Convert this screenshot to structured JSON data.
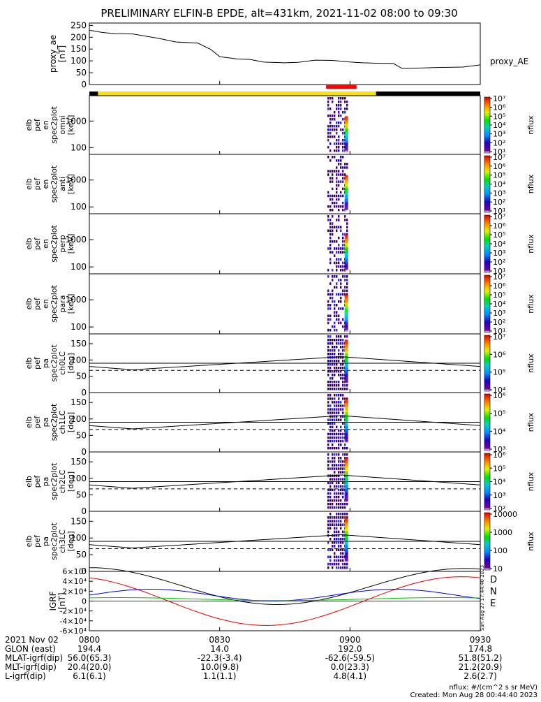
{
  "title": "PRELIMINARY ELFIN-B EPDE, alt=431km, 2021-11-02 08:00 to 09:30",
  "chart_data": [
    {
      "id": "proxy_ae",
      "type": "line",
      "ylabel": [
        "proxy_ae",
        "[nT]"
      ],
      "legend": "proxy_AE",
      "ylim": [
        0,
        260
      ],
      "yticks": [
        "0",
        "50",
        "100",
        "150",
        "200",
        "250"
      ],
      "series": [
        {
          "name": "proxy_AE",
          "x_min": [
            0,
            3,
            6,
            10,
            16,
            20,
            25,
            28,
            30,
            34,
            37,
            40,
            45,
            48,
            52,
            56,
            60,
            63,
            66,
            70,
            72,
            77,
            80,
            86,
            90
          ],
          "values": [
            230,
            220,
            215,
            214,
            195,
            180,
            175,
            148,
            118,
            108,
            106,
            95,
            92,
            94,
            103,
            102,
            95,
            92,
            90,
            89,
            68,
            70,
            72,
            74,
            83
          ]
        }
      ]
    },
    {
      "id": "en_omni",
      "type": "heatmap",
      "ylabel": [
        "elb",
        "pef",
        "en",
        "spec2plot",
        "omni",
        "[keV]"
      ],
      "yscale": "log",
      "yticks": [
        "100",
        "1000"
      ],
      "colorbar": {
        "ticks": [
          "10¹",
          "10²",
          "10³",
          "10⁴",
          "10⁵",
          "10⁶",
          "10⁷"
        ],
        "label": "nflux"
      }
    },
    {
      "id": "en_anti",
      "type": "heatmap",
      "ylabel": [
        "elb",
        "pef",
        "en",
        "spec2plot",
        "anti",
        "[keV]"
      ],
      "yscale": "log",
      "yticks": [
        "100",
        "1000"
      ],
      "colorbar": {
        "ticks": [
          "10¹",
          "10²",
          "10³",
          "10⁴",
          "10⁵",
          "10⁶",
          "10⁷"
        ],
        "label": "nflux"
      }
    },
    {
      "id": "en_perp",
      "type": "heatmap",
      "ylabel": [
        "elb",
        "pef",
        "en",
        "spec2plot",
        "perp",
        "[keV]"
      ],
      "yscale": "log",
      "yticks": [
        "100",
        "1000"
      ],
      "colorbar": {
        "ticks": [
          "10¹",
          "10²",
          "10³",
          "10⁴",
          "10⁵",
          "10⁶",
          "10⁷"
        ],
        "label": "nflux"
      }
    },
    {
      "id": "en_para",
      "type": "heatmap",
      "ylabel": [
        "elb",
        "pef",
        "en",
        "spec2plot",
        "para",
        "[keV]"
      ],
      "yscale": "log",
      "yticks": [
        "100",
        "1000"
      ],
      "colorbar": {
        "ticks": [
          "10¹",
          "10²",
          "10³",
          "10⁴",
          "10⁵",
          "10⁶",
          "10⁷"
        ],
        "label": "nflux"
      }
    },
    {
      "id": "ch0lc",
      "type": "heatmap",
      "ylabel": [
        "elb",
        "pef",
        "pa",
        "spec2plot",
        "ch0LC",
        "[deg]"
      ],
      "yticks": [
        "0",
        "50",
        "100",
        "150"
      ],
      "ylim": [
        0,
        180
      ],
      "colorbar": {
        "ticks": [
          "10⁴",
          "10⁵",
          "10⁶",
          "10⁷"
        ],
        "label": "nflux"
      }
    },
    {
      "id": "ch1lc",
      "type": "heatmap",
      "ylabel": [
        "elb",
        "pef",
        "pa",
        "spec2plot",
        "ch1LC",
        "[deg]"
      ],
      "yticks": [
        "0",
        "50",
        "100",
        "150"
      ],
      "ylim": [
        0,
        180
      ],
      "colorbar": {
        "ticks": [
          "10³",
          "10⁴",
          "10⁵",
          "10⁶"
        ],
        "label": "nflux"
      }
    },
    {
      "id": "ch2lc",
      "type": "heatmap",
      "ylabel": [
        "elb",
        "pef",
        "pa",
        "spec2plot",
        "ch2LC",
        "[deg]"
      ],
      "yticks": [
        "0",
        "50",
        "100",
        "150"
      ],
      "ylim": [
        0,
        180
      ],
      "colorbar": {
        "ticks": [
          "10²",
          "10³",
          "10⁴",
          "10⁵",
          "10⁶"
        ],
        "label": "nflux"
      }
    },
    {
      "id": "ch3lc",
      "type": "heatmap",
      "ylabel": [
        "elb",
        "pef",
        "pa",
        "spec2plot",
        "ch3LC",
        "[deg]"
      ],
      "yticks": [
        "0",
        "50",
        "100",
        "150"
      ],
      "ylim": [
        0,
        180
      ],
      "colorbar": {
        "ticks": [
          "10",
          "100",
          "1000",
          "10000"
        ],
        "label": "nflux"
      }
    },
    {
      "id": "igrf",
      "type": "line",
      "ylabel": [
        "IGRF",
        "[nT]"
      ],
      "ylim": [
        -60000,
        60000
      ],
      "yticks": [
        "-6×10⁴",
        "-4×10⁴",
        "-2×10⁴",
        "0",
        "2×10⁴",
        "4×10⁴",
        "6×10⁴"
      ],
      "series": [
        {
          "name": "D",
          "color": "#e00000"
        },
        {
          "name": "N",
          "color": "#0000e0"
        },
        {
          "name": "E",
          "color": "#00c000"
        }
      ]
    }
  ],
  "orbit_bar": {
    "segments": [
      {
        "from_min": 0,
        "to_min": 2,
        "color": "#000000"
      },
      {
        "from_min": 2,
        "to_min": 66,
        "color": "#ffe000"
      },
      {
        "from_min": 66,
        "to_min": 90,
        "color": "#000000"
      }
    ],
    "science_zone": {
      "from_min": 54.5,
      "to_min": 61.5,
      "color": "#ff0000"
    }
  },
  "xaxis": {
    "range_min": [
      0,
      90
    ],
    "ticks": [
      {
        "min": 0,
        "label": "0800"
      },
      {
        "min": 30,
        "label": "0830"
      },
      {
        "min": 60,
        "label": "0900"
      },
      {
        "min": 90,
        "label": "0930"
      }
    ],
    "rows": [
      {
        "label": "2021 Nov 02",
        "values": [
          "",
          "",
          "",
          ""
        ]
      },
      {
        "label": "GLON (east)",
        "values": [
          "194.4",
          "14.0",
          "192.0",
          "174.8"
        ]
      },
      {
        "label": "MLAT-igrf(dip)",
        "values": [
          "56.0(65.3)",
          "-22.3(-3.4)",
          "-62.6(-59.5)",
          "51.8(51.2)"
        ]
      },
      {
        "label": "MLT-igrf(dip)",
        "values": [
          "20.4(20.0)",
          "10.0(9.8)",
          "0.0(23.3)",
          "21.2(20.9)"
        ]
      },
      {
        "label": "L-igrf(dip)",
        "values": [
          "6.1(6.1)",
          "1.1(1.1)",
          "4.8(4.1)",
          "2.6(2.7)"
        ]
      }
    ]
  },
  "footer": {
    "units": "nflux: #/(cm^2 s sr MeV)",
    "created": "Created: Mon Aug 28 00:44:40 2023",
    "side_stamp": "Sun Aug 27 17:44:40 2023"
  }
}
